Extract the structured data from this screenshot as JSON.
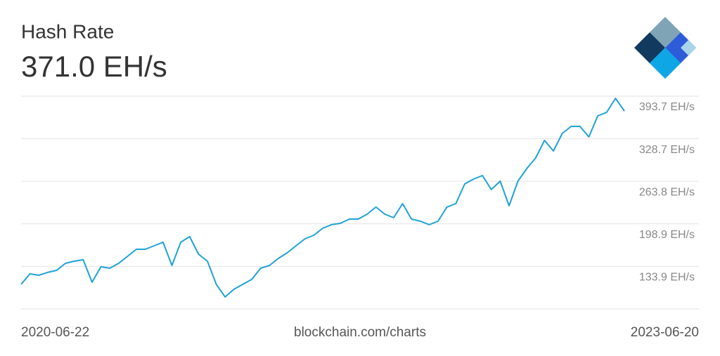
{
  "chart_data": {
    "type": "line",
    "title": "Hash Rate",
    "subtitle": "371.0 EH/s",
    "source": "blockchain.com/charts",
    "xlim": [
      "2020-06-22",
      "2023-06-20"
    ],
    "ylim": [
      68.9,
      393.7
    ],
    "yticks": [
      {
        "value": 133.9,
        "label": "133.9 EH/s"
      },
      {
        "value": 198.9,
        "label": "198.9 EH/s"
      },
      {
        "value": 263.8,
        "label": "263.8 EH/s"
      },
      {
        "value": 328.7,
        "label": "328.7 EH/s"
      },
      {
        "value": 393.7,
        "label": "393.7 EH/s"
      }
    ],
    "grid": true,
    "color": "#1fa2d6",
    "values": [
      106.5,
      122.5,
      120.4,
      124.7,
      127.9,
      138.6,
      141.8,
      144.0,
      109.7,
      133.3,
      131.1,
      138.6,
      149.3,
      160.0,
      160.0,
      165.4,
      170.8,
      135.4,
      170.8,
      179.3,
      152.5,
      141.8,
      106.5,
      87.2,
      99.0,
      106.5,
      114.0,
      131.1,
      135.4,
      146.1,
      154.7,
      165.4,
      176.1,
      181.5,
      192.2,
      197.6,
      199.7,
      206.1,
      206.1,
      213.6,
      224.4,
      213.6,
      208.3,
      229.7,
      206.1,
      202.9,
      197.6,
      202.9,
      224.4,
      229.7,
      259.7,
      267.2,
      272.6,
      251.2,
      264.0,
      226.5,
      264.0,
      283.3,
      299.4,
      326.2,
      310.1,
      336.9,
      347.6,
      347.6,
      331.5,
      363.7,
      369.0,
      390.5,
      371.0
    ]
  }
}
